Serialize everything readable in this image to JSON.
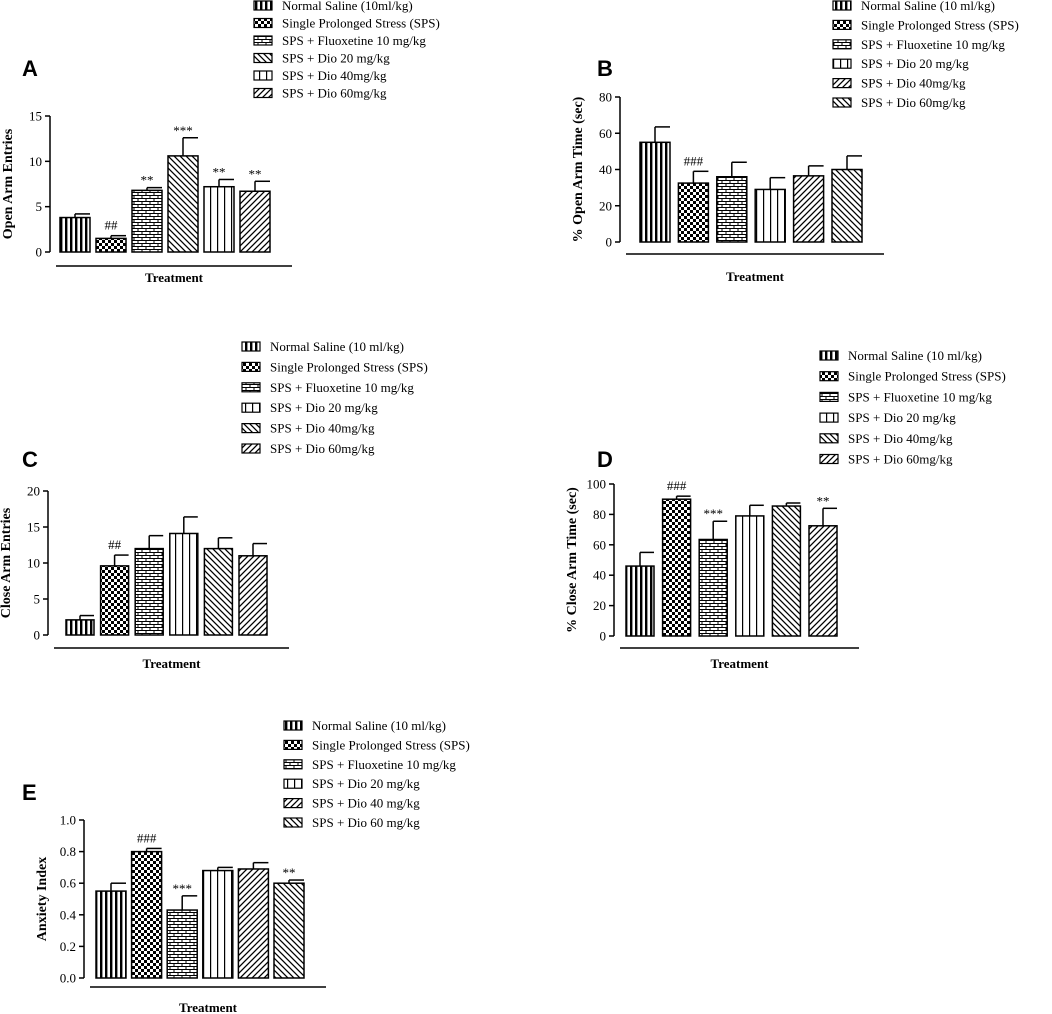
{
  "chart_data": [
    {
      "id": "A",
      "type": "bar",
      "panel_label": "A",
      "ylabel": "Open Arm Entries",
      "xlabel": "Treatment",
      "ylim": [
        0,
        15
      ],
      "yticks": [
        0,
        5,
        10,
        15
      ],
      "legend": [
        "Normal Saline (10ml/kg)",
        "Single Prolonged Stress (SPS)",
        "SPS + Fluoxetine 10 mg/kg",
        "SPS + Dio 20 mg/kg",
        "SPS + Dio 40mg/kg",
        "SPS + Dio 60mg/kg"
      ],
      "patterns": [
        "vlines",
        "checker",
        "bricks",
        "diag-back",
        "vlines-wide",
        "diag-fwd"
      ],
      "values": [
        3.8,
        1.5,
        6.8,
        10.6,
        7.2,
        6.7
      ],
      "errors": [
        0.4,
        0.3,
        0.3,
        2.0,
        0.8,
        1.1
      ],
      "annotations": [
        "",
        "##",
        "**",
        "***",
        "**",
        "**"
      ]
    },
    {
      "id": "B",
      "type": "bar",
      "panel_label": "B",
      "ylabel": "% Open Arm Time (sec)",
      "xlabel": "Treatment",
      "ylim": [
        0,
        80
      ],
      "yticks": [
        0,
        20,
        40,
        60,
        80
      ],
      "legend": [
        "Normal Saline (10 ml/kg)",
        "Single Prolonged Stress (SPS)",
        "SPS + Fluoxetine 10 mg/kg",
        "SPS + Dio 20 mg/kg",
        "SPS + Dio 40mg/kg",
        "SPS + Dio 60mg/kg"
      ],
      "patterns": [
        "vlines",
        "checker",
        "bricks",
        "vlines-wide",
        "diag-fwd",
        "diag-back"
      ],
      "values": [
        55,
        32.5,
        36,
        29,
        36.5,
        40
      ],
      "errors": [
        8.5,
        6.5,
        8,
        6.5,
        5.5,
        7.5
      ],
      "annotations": [
        "",
        "###",
        "",
        "",
        "",
        ""
      ]
    },
    {
      "id": "C",
      "type": "bar",
      "panel_label": "C",
      "ylabel": "Close Arm Entries",
      "xlabel": "Treatment",
      "ylim": [
        0,
        20
      ],
      "yticks": [
        0,
        5,
        10,
        15,
        20
      ],
      "legend": [
        "Normal Saline (10 ml/kg)",
        "Single Prolonged Stress (SPS)",
        "SPS + Fluoxetine 10 mg/kg",
        "SPS + Dio 20 mg/kg",
        "SPS + Dio 40mg/kg",
        "SPS + Dio 60mg/kg"
      ],
      "patterns": [
        "vlines",
        "checker",
        "bricks",
        "vlines-wide",
        "diag-back",
        "diag-fwd"
      ],
      "values": [
        2.1,
        9.6,
        12,
        14.1,
        12,
        11
      ],
      "errors": [
        0.6,
        1.5,
        1.8,
        2.3,
        1.5,
        1.7
      ],
      "annotations": [
        "",
        "##",
        "",
        "",
        "",
        ""
      ]
    },
    {
      "id": "D",
      "type": "bar",
      "panel_label": "D",
      "ylabel": "% Close Arm Time (sec)",
      "xlabel": "Treatment",
      "ylim": [
        0,
        100
      ],
      "yticks": [
        0,
        20,
        40,
        60,
        80,
        100
      ],
      "legend": [
        "Normal Saline (10 ml/kg)",
        "Single Prolonged Stress (SPS)",
        "SPS + Fluoxetine 10 mg/kg",
        "SPS + Dio 20 mg/kg",
        "SPS + Dio 40mg/kg",
        "SPS + Dio 60mg/kg"
      ],
      "patterns": [
        "vlines",
        "checker",
        "bricks",
        "vlines-wide",
        "diag-back",
        "diag-fwd"
      ],
      "values": [
        46,
        90,
        63.5,
        79,
        85.5,
        72.5
      ],
      "errors": [
        9,
        2,
        12,
        7,
        2,
        11.5
      ],
      "annotations": [
        "",
        "###",
        "***",
        "",
        "",
        "**"
      ]
    },
    {
      "id": "E",
      "type": "bar",
      "panel_label": "E",
      "ylabel": "Anxiety Index",
      "xlabel": "Treatment",
      "ylim": [
        0,
        1.0
      ],
      "yticks": [
        "0.0",
        "0.2",
        "0.4",
        "0.6",
        "0.8",
        "1.0"
      ],
      "legend": [
        "Normal Saline (10 ml/kg)",
        "Single Prolonged Stress (SPS)",
        "SPS + Fluoxetine 10 mg/kg",
        "SPS + Dio 20 mg/kg",
        "SPS + Dio 40 mg/kg",
        "SPS + Dio 60 mg/kg"
      ],
      "patterns": [
        "vlines",
        "checker",
        "bricks",
        "vlines-wide",
        "diag-fwd",
        "diag-back"
      ],
      "values": [
        0.55,
        0.8,
        0.43,
        0.68,
        0.69,
        0.6
      ],
      "errors": [
        0.05,
        0.02,
        0.09,
        0.02,
        0.04,
        0.02
      ],
      "annotations": [
        "",
        "###",
        "***",
        "",
        "",
        "**"
      ]
    }
  ]
}
